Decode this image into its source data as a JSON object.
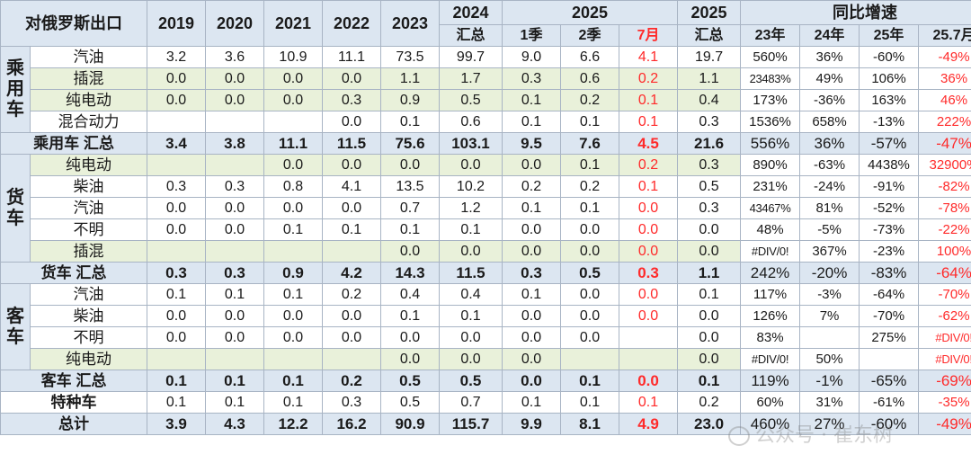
{
  "header": {
    "corner": "对俄罗斯出口",
    "years": [
      "2019",
      "2020",
      "2021",
      "2022",
      "2023"
    ],
    "y2024_top": "2024",
    "y2024_bottom": "汇总",
    "y2025_top": "2025",
    "q1": "1季",
    "q2": "2季",
    "jul": "7月",
    "t2025_top": "2025",
    "t2025_bottom": "汇总",
    "growth": "同比增速",
    "growth_cols": [
      "23年",
      "24年",
      "25年",
      "25.7月"
    ]
  },
  "categories": {
    "passenger": "乘用车",
    "truck": "货车",
    "bus": "客车"
  },
  "rows": [
    {
      "label": "汽油",
      "v": [
        "3.2",
        "3.6",
        "10.9",
        "11.1",
        "73.5",
        "99.7",
        "9.0",
        "6.6",
        "4.1",
        "19.7"
      ],
      "g": [
        "560%",
        "36%",
        "-60%",
        "-49%"
      ]
    },
    {
      "label": "插混",
      "v": [
        "0.0",
        "0.0",
        "0.0",
        "0.0",
        "1.1",
        "1.7",
        "0.3",
        "0.6",
        "0.2",
        "1.1"
      ],
      "g": [
        "23483%",
        "49%",
        "106%",
        "36%"
      ]
    },
    {
      "label": "纯电动",
      "v": [
        "0.0",
        "0.0",
        "0.0",
        "0.3",
        "0.9",
        "0.5",
        "0.1",
        "0.2",
        "0.1",
        "0.4"
      ],
      "g": [
        "173%",
        "-36%",
        "163%",
        "46%"
      ]
    },
    {
      "label": "混合动力",
      "v": [
        "",
        "",
        "",
        "0.0",
        "0.1",
        "0.6",
        "0.1",
        "0.1",
        "0.1",
        "0.3"
      ],
      "g": [
        "1536%",
        "658%",
        "-13%",
        "222%"
      ]
    },
    {
      "label": "乘用车 汇总",
      "v": [
        "3.4",
        "3.8",
        "11.1",
        "11.5",
        "75.6",
        "103.1",
        "9.5",
        "7.6",
        "4.5",
        "21.6"
      ],
      "g": [
        "556%",
        "36%",
        "-57%",
        "-47%"
      ]
    },
    {
      "label": "纯电动",
      "v": [
        "",
        "",
        "0.0",
        "0.0",
        "0.0",
        "0.0",
        "0.0",
        "0.1",
        "0.2",
        "0.3"
      ],
      "g": [
        "890%",
        "-63%",
        "4438%",
        "32900%"
      ]
    },
    {
      "label": "柴油",
      "v": [
        "0.3",
        "0.3",
        "0.8",
        "4.1",
        "13.5",
        "10.2",
        "0.2",
        "0.2",
        "0.1",
        "0.5"
      ],
      "g": [
        "231%",
        "-24%",
        "-91%",
        "-82%"
      ]
    },
    {
      "label": "汽油",
      "v": [
        "0.0",
        "0.0",
        "0.0",
        "0.0",
        "0.7",
        "1.2",
        "0.1",
        "0.1",
        "0.0",
        "0.3"
      ],
      "g": [
        "43467%",
        "81%",
        "-52%",
        "-78%"
      ]
    },
    {
      "label": "不明",
      "v": [
        "0.0",
        "0.0",
        "0.1",
        "0.1",
        "0.1",
        "0.1",
        "0.0",
        "0.0",
        "0.0",
        "0.0"
      ],
      "g": [
        "48%",
        "-5%",
        "-73%",
        "-22%"
      ]
    },
    {
      "label": "插混",
      "v": [
        "",
        "",
        "",
        "",
        "0.0",
        "0.0",
        "0.0",
        "0.0",
        "0.0",
        "0.0"
      ],
      "g": [
        "#DIV/0!",
        "367%",
        "-23%",
        "100%"
      ]
    },
    {
      "label": "货车 汇总",
      "v": [
        "0.3",
        "0.3",
        "0.9",
        "4.2",
        "14.3",
        "11.5",
        "0.3",
        "0.5",
        "0.3",
        "1.1"
      ],
      "g": [
        "242%",
        "-20%",
        "-83%",
        "-64%"
      ]
    },
    {
      "label": "汽油",
      "v": [
        "0.1",
        "0.1",
        "0.1",
        "0.2",
        "0.4",
        "0.4",
        "0.1",
        "0.0",
        "0.0",
        "0.1"
      ],
      "g": [
        "117%",
        "-3%",
        "-64%",
        "-70%"
      ]
    },
    {
      "label": "柴油",
      "v": [
        "0.0",
        "0.0",
        "0.0",
        "0.0",
        "0.1",
        "0.1",
        "0.0",
        "0.0",
        "0.0",
        "0.0"
      ],
      "g": [
        "126%",
        "7%",
        "-70%",
        "-62%"
      ]
    },
    {
      "label": "不明",
      "v": [
        "0.0",
        "0.0",
        "0.0",
        "0.0",
        "0.0",
        "0.0",
        "0.0",
        "0.0",
        "",
        "0.0"
      ],
      "g": [
        "83%",
        "",
        "275%",
        "#DIV/0!"
      ]
    },
    {
      "label": "纯电动",
      "v": [
        "",
        "",
        "",
        "",
        "0.0",
        "0.0",
        "0.0",
        "",
        "",
        "0.0"
      ],
      "g": [
        "#DIV/0!",
        "50%",
        "",
        "#DIV/0!"
      ]
    },
    {
      "label": "客车 汇总",
      "v": [
        "0.1",
        "0.1",
        "0.1",
        "0.2",
        "0.5",
        "0.5",
        "0.0",
        "0.1",
        "0.0",
        "0.1"
      ],
      "g": [
        "119%",
        "-1%",
        "-65%",
        "-69%"
      ]
    },
    {
      "label": "特种车",
      "v": [
        "0.1",
        "0.1",
        "0.1",
        "0.3",
        "0.5",
        "0.7",
        "0.1",
        "0.1",
        "0.1",
        "0.2"
      ],
      "g": [
        "60%",
        "31%",
        "-61%",
        "-35%"
      ]
    },
    {
      "label": "总计",
      "v": [
        "3.9",
        "4.3",
        "12.2",
        "16.2",
        "90.9",
        "115.7",
        "9.9",
        "8.1",
        "4.9",
        "23.0"
      ],
      "g": [
        "460%",
        "27%",
        "-60%",
        "-49%"
      ]
    }
  ],
  "watermark": "公众号 · 崔东树",
  "colors": {
    "header_bg": "#dce6f1",
    "green_bg": "#e9f1da",
    "red_text": "#ff2a2a",
    "border": "#a8b4c4"
  }
}
